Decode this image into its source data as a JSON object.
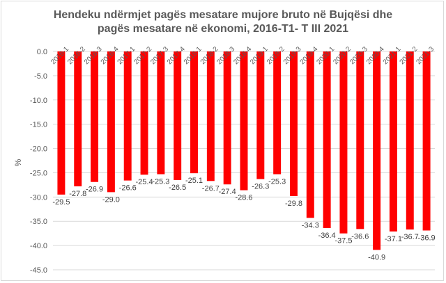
{
  "chart_data": {
    "type": "bar",
    "title_line1": "Hendeku ndërmjet pagës mesatare mujore bruto në Bujqësi dhe",
    "title_line2": "pagës mesatare në ekonomi, 2016-T1- T III 2021",
    "xlabel": "",
    "ylabel": "%",
    "ylim": [
      -45,
      0
    ],
    "yticks": [
      "0.0",
      "-5.0",
      "-10.0",
      "-15.0",
      "-20.0",
      "-25.0",
      "-30.0",
      "-35.0",
      "-40.0",
      "-45.0"
    ],
    "grid": true,
    "bar_color": "#ff0000",
    "categories": [
      "2016-1",
      "2016-2",
      "2016-3",
      "2016-4",
      "2017-1",
      "2017-2",
      "2017-3",
      "2017-4",
      "2018-1",
      "2018-2",
      "2018-3",
      "2018-4",
      "2019-1",
      "2019-2",
      "2019-3",
      "2019-4",
      "2020-1",
      "2020-2",
      "2020-3",
      "2020-4",
      "2021-1",
      "2021-2",
      "2021-3"
    ],
    "values": [
      -29.5,
      -27.8,
      -26.9,
      -29.0,
      -26.6,
      -25.4,
      -25.3,
      -26.5,
      -25.1,
      -26.7,
      -27.4,
      -28.6,
      -26.3,
      -25.3,
      -29.8,
      -34.3,
      -36.4,
      -37.5,
      -36.6,
      -40.9,
      -37.1,
      -36.7,
      -36.9
    ],
    "value_labels": [
      "-29.5",
      "-27.8",
      "-26.9",
      "-29.0",
      "-26.6",
      "-25.4",
      "-25.3",
      "-26.5",
      "-25.1",
      "-26.7",
      "-27.4",
      "-28.6",
      "-26.3",
      "-25.3",
      "-29.8",
      "-34.3",
      "-36.4",
      "-37.5",
      "-36.6",
      "-40.9",
      "-37.1",
      "-36.7",
      "-36.9"
    ]
  }
}
